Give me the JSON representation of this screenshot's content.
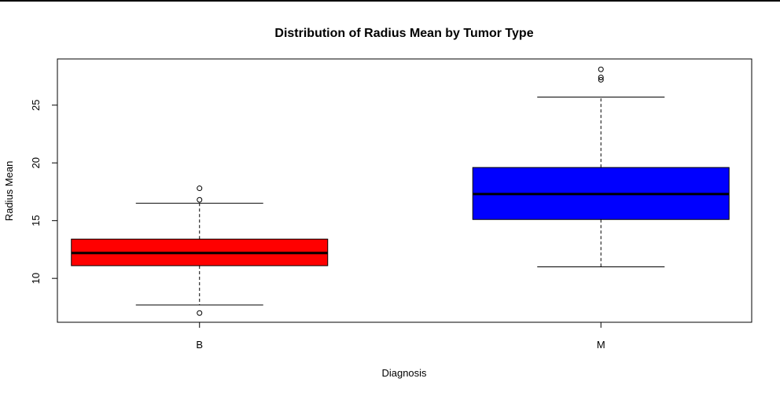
{
  "chart_data": {
    "type": "box",
    "title": "Distribution of Radius Mean by Tumor Type",
    "xlabel": "Diagnosis",
    "ylabel": "Radius Mean",
    "ylim": [
      6.2,
      29.0
    ],
    "yticks": [
      10,
      15,
      20,
      25
    ],
    "categories": [
      "B",
      "M"
    ],
    "boxes": [
      {
        "category": "B",
        "color": "#ff0000",
        "whisker_low": 7.7,
        "q1": 11.1,
        "median": 12.2,
        "q3": 13.4,
        "whisker_high": 16.5,
        "outliers": [
          7.0,
          16.8,
          17.8
        ]
      },
      {
        "category": "M",
        "color": "#0000ff",
        "whisker_low": 11.0,
        "q1": 15.1,
        "median": 17.3,
        "q3": 19.6,
        "whisker_high": 25.7,
        "outliers": [
          27.2,
          27.4,
          28.1
        ]
      }
    ]
  }
}
